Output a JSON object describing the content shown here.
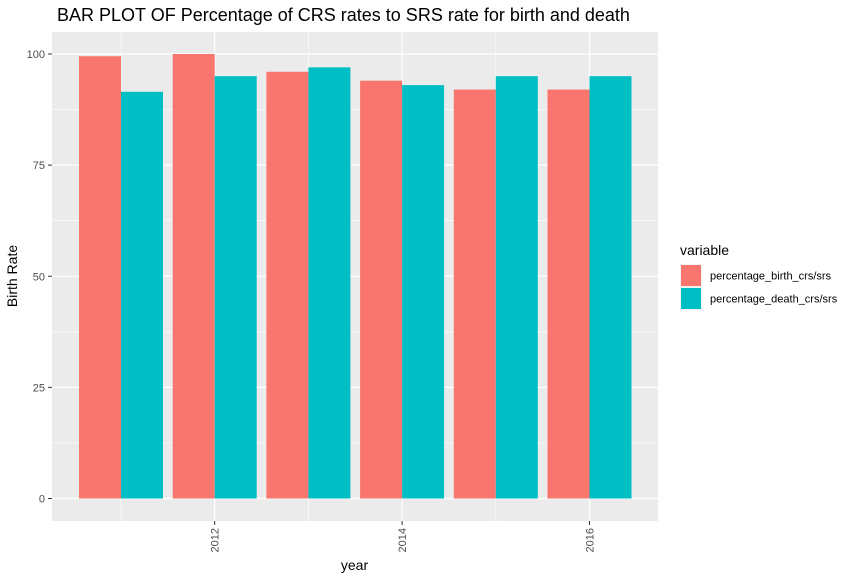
{
  "chart_data": {
    "type": "bar",
    "title": "BAR PLOT OF Percentage of CRS rates to SRS rate for birth and death",
    "xlabel": "year",
    "ylabel": "Birth Rate",
    "x": [
      2011,
      2012,
      2013,
      2014,
      2015,
      2016
    ],
    "x_ticks": [
      "2012",
      "2014",
      "2016"
    ],
    "y_ticks": [
      "0",
      "25",
      "50",
      "75",
      "100"
    ],
    "ylim": [
      0,
      100
    ],
    "grid": true,
    "legend": {
      "title": "variable",
      "position": "right"
    },
    "series": [
      {
        "name": "percentage_birth_crs/srs",
        "color": "#F8766D",
        "values": [
          99.5,
          100,
          96,
          94,
          92,
          92
        ]
      },
      {
        "name": "percentage_death_crs/srs",
        "color": "#00BFC4",
        "values": [
          91.5,
          95,
          97,
          93,
          95,
          95
        ]
      }
    ],
    "panel_background": "#EBEBEB",
    "grid_color": "#FFFFFF"
  }
}
